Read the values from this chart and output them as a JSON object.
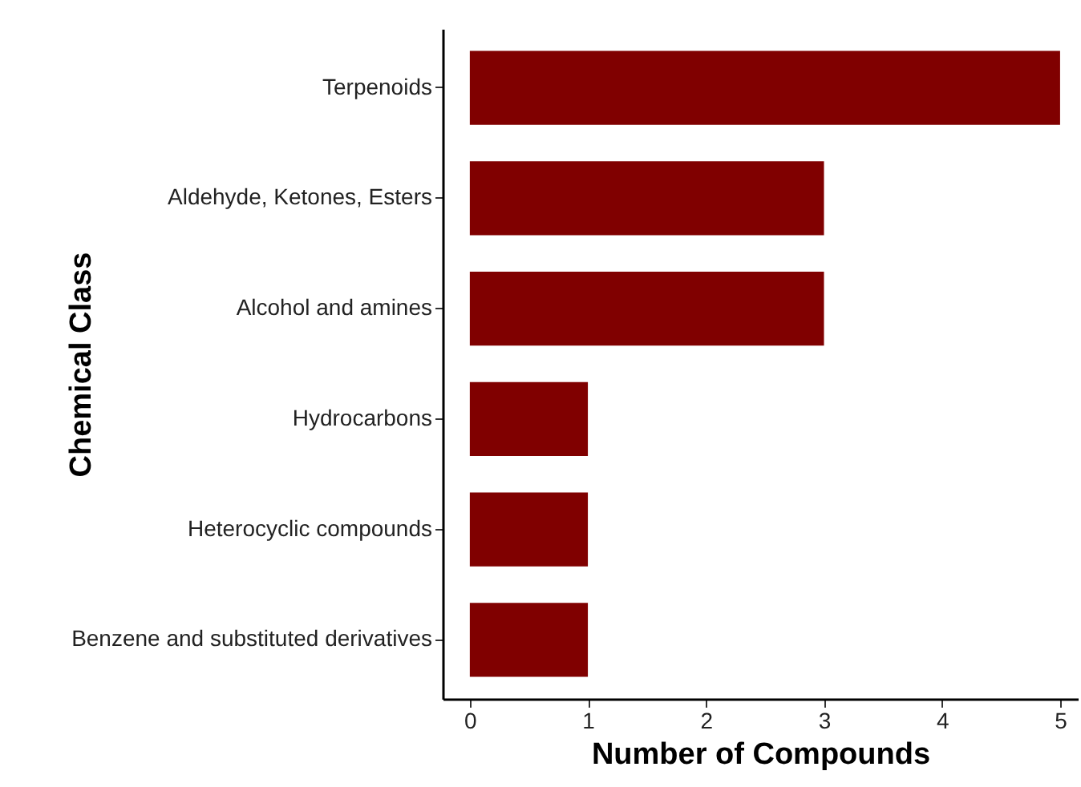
{
  "chart_data": {
    "type": "bar",
    "orientation": "horizontal",
    "categories": [
      "Terpenoids",
      "Aldehyde, Ketones, Esters",
      "Alcohol and amines",
      "Hydrocarbons",
      "Heterocyclic compounds",
      "Benzene and substituted derivatives"
    ],
    "values": [
      5,
      3,
      3,
      1,
      1,
      1
    ],
    "color": "#800000",
    "xlim": [
      -0.23,
      5.15
    ],
    "xticks": [
      0,
      1,
      2,
      3,
      4,
      5
    ],
    "xlabel": "Number of Compounds",
    "ylabel": "Chemical Class"
  }
}
